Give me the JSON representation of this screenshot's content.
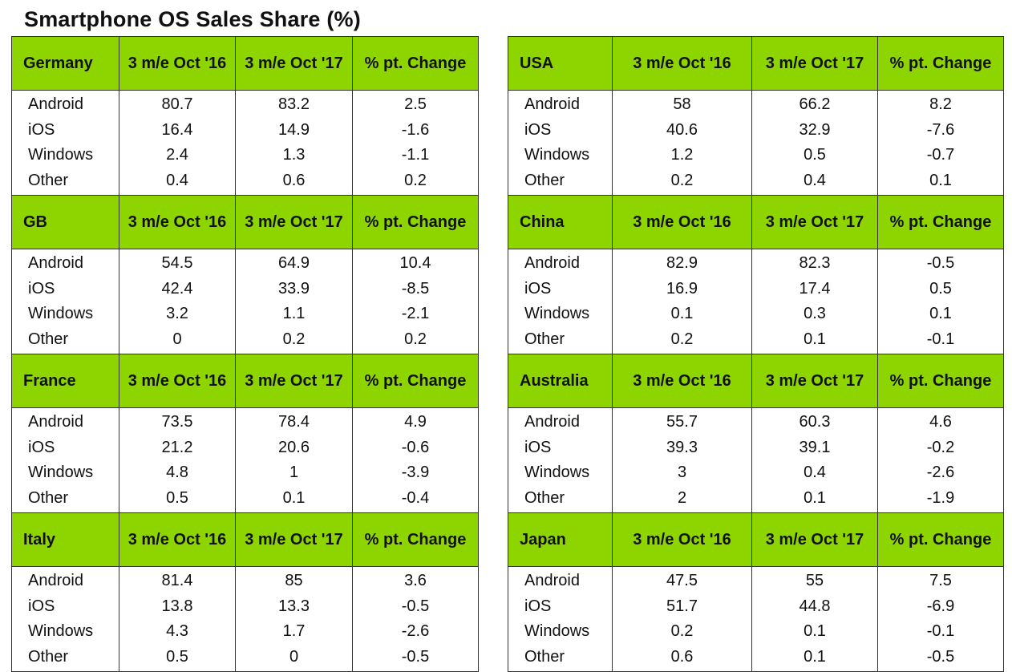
{
  "title": "Smartphone OS Sales Share (%)",
  "left_column": [
    {
      "country": "Germany",
      "headers": [
        "3 m/e Oct '16",
        "3 m/e Oct '17",
        "% pt. Change"
      ],
      "rows": [
        {
          "os": "Android",
          "v16": "80.7",
          "v17": "83.2",
          "chg": "2.5"
        },
        {
          "os": "iOS",
          "v16": "16.4",
          "v17": "14.9",
          "chg": "-1.6"
        },
        {
          "os": "Windows",
          "v16": "2.4",
          "v17": "1.3",
          "chg": "-1.1"
        },
        {
          "os": "Other",
          "v16": "0.4",
          "v17": "0.6",
          "chg": "0.2"
        }
      ]
    },
    {
      "country": "GB",
      "headers": [
        "3 m/e Oct '16",
        "3 m/e Oct '17",
        "% pt. Change"
      ],
      "rows": [
        {
          "os": "Android",
          "v16": "54.5",
          "v17": "64.9",
          "chg": "10.4"
        },
        {
          "os": "iOS",
          "v16": "42.4",
          "v17": "33.9",
          "chg": "-8.5"
        },
        {
          "os": "Windows",
          "v16": "3.2",
          "v17": "1.1",
          "chg": "-2.1"
        },
        {
          "os": "Other",
          "v16": "0",
          "v17": "0.2",
          "chg": "0.2"
        }
      ]
    },
    {
      "country": "France",
      "headers": [
        "3 m/e Oct '16",
        "3 m/e Oct '17",
        "% pt. Change"
      ],
      "rows": [
        {
          "os": "Android",
          "v16": "73.5",
          "v17": "78.4",
          "chg": "4.9"
        },
        {
          "os": "iOS",
          "v16": "21.2",
          "v17": "20.6",
          "chg": "-0.6"
        },
        {
          "os": "Windows",
          "v16": "4.8",
          "v17": "1",
          "chg": "-3.9"
        },
        {
          "os": "Other",
          "v16": "0.5",
          "v17": "0.1",
          "chg": "-0.4"
        }
      ]
    },
    {
      "country": "Italy",
      "headers": [
        "3 m/e Oct '16",
        "3 m/e Oct '17",
        "% pt. Change"
      ],
      "rows": [
        {
          "os": "Android",
          "v16": "81.4",
          "v17": "85",
          "chg": "3.6"
        },
        {
          "os": "iOS",
          "v16": "13.8",
          "v17": "13.3",
          "chg": "-0.5"
        },
        {
          "os": "Windows",
          "v16": "4.3",
          "v17": "1.7",
          "chg": "-2.6"
        },
        {
          "os": "Other",
          "v16": "0.5",
          "v17": "0",
          "chg": "-0.5"
        }
      ]
    }
  ],
  "right_column": [
    {
      "country": "USA",
      "headers": [
        "3 m/e Oct '16",
        "3 m/e Oct '17",
        "% pt. Change"
      ],
      "rows": [
        {
          "os": "Android",
          "v16": "58",
          "v17": "66.2",
          "chg": "8.2"
        },
        {
          "os": "iOS",
          "v16": "40.6",
          "v17": "32.9",
          "chg": "-7.6"
        },
        {
          "os": "Windows",
          "v16": "1.2",
          "v17": "0.5",
          "chg": "-0.7"
        },
        {
          "os": "Other",
          "v16": "0.2",
          "v17": "0.4",
          "chg": "0.1"
        }
      ]
    },
    {
      "country": "China",
      "headers": [
        "3 m/e Oct '16",
        "3 m/e Oct '17",
        "% pt. Change"
      ],
      "rows": [
        {
          "os": "Android",
          "v16": "82.9",
          "v17": "82.3",
          "chg": "-0.5"
        },
        {
          "os": "iOS",
          "v16": "16.9",
          "v17": "17.4",
          "chg": "0.5"
        },
        {
          "os": "Windows",
          "v16": "0.1",
          "v17": "0.3",
          "chg": "0.1"
        },
        {
          "os": "Other",
          "v16": "0.2",
          "v17": "0.1",
          "chg": "-0.1"
        }
      ]
    },
    {
      "country": "Australia",
      "headers": [
        "3 m/e Oct '16",
        "3 m/e Oct '17",
        "% pt. Change"
      ],
      "rows": [
        {
          "os": "Android",
          "v16": "55.7",
          "v17": "60.3",
          "chg": "4.6"
        },
        {
          "os": "iOS",
          "v16": "39.3",
          "v17": "39.1",
          "chg": "-0.2"
        },
        {
          "os": "Windows",
          "v16": "3",
          "v17": "0.4",
          "chg": "-2.6"
        },
        {
          "os": "Other",
          "v16": "2",
          "v17": "0.1",
          "chg": "-1.9"
        }
      ]
    },
    {
      "country": "Japan",
      "headers": [
        "3 m/e Oct '16",
        "3 m/e Oct '17",
        "% pt. Change"
      ],
      "rows": [
        {
          "os": "Android",
          "v16": "47.5",
          "v17": "55",
          "chg": "7.5"
        },
        {
          "os": "iOS",
          "v16": "51.7",
          "v17": "44.8",
          "chg": "-6.9"
        },
        {
          "os": "Windows",
          "v16": "0.2",
          "v17": "0.1",
          "chg": "-0.1"
        },
        {
          "os": "Other",
          "v16": "0.6",
          "v17": "0.1",
          "chg": "-0.5"
        }
      ]
    }
  ],
  "colors": {
    "header_green": "#8ed500",
    "border": "#333333",
    "text": "#111111"
  }
}
